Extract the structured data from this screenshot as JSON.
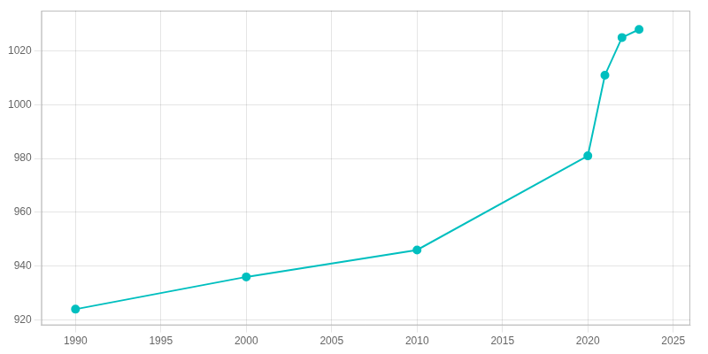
{
  "chart_data": {
    "type": "line",
    "x": [
      1990,
      2000,
      2010,
      2020,
      2021,
      2022,
      2023
    ],
    "values": [
      924,
      936,
      946,
      981,
      1011,
      1025,
      1028
    ],
    "color": "#00BFBF",
    "marker": "circle",
    "xlim": [
      1988,
      2026
    ],
    "ylim": [
      918,
      1035
    ],
    "xticks": [
      1990,
      1995,
      2000,
      2005,
      2010,
      2015,
      2020,
      2025
    ],
    "yticks": [
      920,
      940,
      960,
      980,
      1000,
      1020
    ],
    "grid": true
  }
}
